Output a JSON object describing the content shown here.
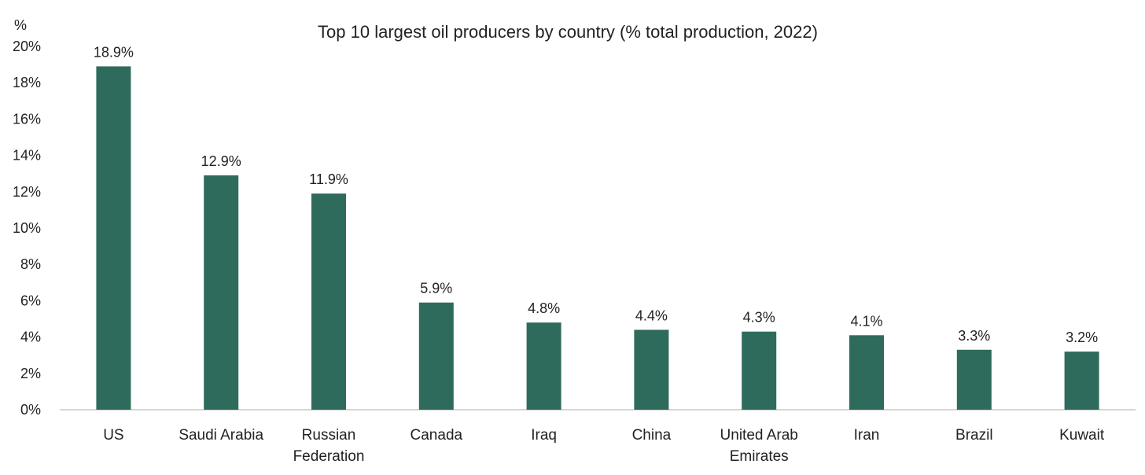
{
  "chart_data": {
    "type": "bar",
    "title": "Top 10 largest oil producers by country (% total production, 2022)",
    "ylabel": "%",
    "xlabel": "",
    "ylim": [
      0,
      20
    ],
    "y_ticks": [
      "0%",
      "2%",
      "4%",
      "6%",
      "8%",
      "10%",
      "12%",
      "14%",
      "16%",
      "18%",
      "20%"
    ],
    "categories": [
      "US",
      "Saudi Arabia",
      "Russian Federation",
      "Canada",
      "Iraq",
      "China",
      "United Arab Emirates",
      "Iran",
      "Brazil",
      "Kuwait"
    ],
    "category_lines": [
      [
        "US"
      ],
      [
        "Saudi Arabia"
      ],
      [
        "Russian",
        "Federation"
      ],
      [
        "Canada"
      ],
      [
        "Iraq"
      ],
      [
        "China"
      ],
      [
        "United Arab",
        "Emirates"
      ],
      [
        "Iran"
      ],
      [
        "Brazil"
      ],
      [
        "Kuwait"
      ]
    ],
    "values": [
      18.9,
      12.9,
      11.9,
      5.9,
      4.8,
      4.4,
      4.3,
      4.1,
      3.3,
      3.2
    ],
    "data_labels": [
      "18.9%",
      "12.9%",
      "11.9%",
      "5.9%",
      "4.8%",
      "4.4%",
      "4.3%",
      "4.1%",
      "3.3%",
      "3.2%"
    ],
    "grid": false,
    "legend": "none",
    "colors": {
      "bar": "#2e6b5c",
      "axis": "#c8c8c8"
    }
  }
}
